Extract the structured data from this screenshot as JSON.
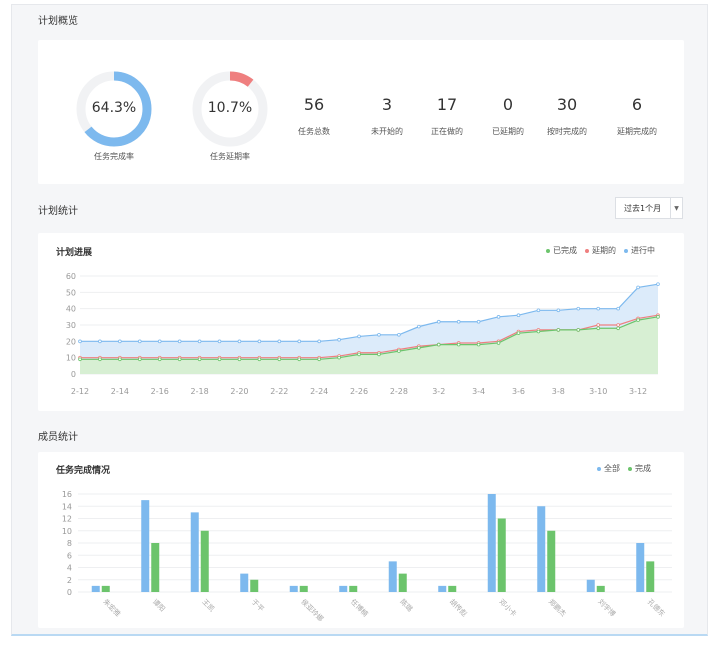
{
  "overview": {
    "title": "计划概览",
    "donuts": [
      {
        "value_text": "64.3%",
        "fraction": 0.643,
        "label": "任务完成率",
        "color": "#7db9ee"
      },
      {
        "value_text": "10.7%",
        "fraction": 0.107,
        "label": "任务延期率",
        "color": "#ef7f7f"
      }
    ],
    "stats": [
      {
        "value": "56",
        "label": "任务总数"
      },
      {
        "value": "3",
        "label": "未开始的"
      },
      {
        "value": "17",
        "label": "正在做的"
      },
      {
        "value": "0",
        "label": "已延期的"
      },
      {
        "value": "30",
        "label": "按时完成的"
      },
      {
        "value": "6",
        "label": "延期完成的"
      }
    ]
  },
  "plan_stats": {
    "title": "计划统计",
    "range_select": "过去1个月"
  },
  "member_stats": {
    "title": "成员统计"
  },
  "colors": {
    "blue": "#7db9ee",
    "green": "#6cc46c",
    "red": "#ef7f7f",
    "blue_fill": "#dcebfa",
    "green_fill": "#d7efd3"
  },
  "chart_data": [
    {
      "type": "area",
      "title": "计划进展",
      "legend": [
        "已完成",
        "延期的",
        "进行中"
      ],
      "legend_position": "top-right",
      "ylim": [
        0,
        60
      ],
      "y_ticks": [
        0,
        10,
        20,
        30,
        40,
        50,
        60
      ],
      "x": [
        "2-12",
        "2-13",
        "2-14",
        "2-15",
        "2-16",
        "2-17",
        "2-18",
        "2-19",
        "2-20",
        "2-21",
        "2-22",
        "2-23",
        "2-24",
        "2-25",
        "2-26",
        "2-27",
        "2-28",
        "3-1",
        "3-2",
        "3-3",
        "3-4",
        "3-5",
        "3-6",
        "3-7",
        "3-8",
        "3-9",
        "3-10",
        "3-11",
        "3-12",
        "3-13"
      ],
      "x_tick_labels": [
        "2-12",
        "2-14",
        "2-16",
        "2-18",
        "2-20",
        "2-22",
        "2-24",
        "2-26",
        "2-28",
        "3-2",
        "3-4",
        "3-6",
        "3-8",
        "3-10",
        "3-12"
      ],
      "series": [
        {
          "name": "进行中",
          "color": "#7db9ee",
          "values": [
            20,
            20,
            20,
            20,
            20,
            20,
            20,
            20,
            20,
            20,
            20,
            20,
            20,
            21,
            23,
            24,
            24,
            29,
            32,
            32,
            32,
            35,
            36,
            39,
            39,
            40,
            40,
            40,
            53,
            55
          ]
        },
        {
          "name": "已完成",
          "color": "#6cc46c",
          "values": [
            9,
            9,
            9,
            9,
            9,
            9,
            9,
            9,
            9,
            9,
            9,
            9,
            9,
            10,
            12,
            12,
            14,
            16,
            18,
            18,
            18,
            19,
            25,
            26,
            27,
            27,
            28,
            28,
            33,
            35
          ]
        },
        {
          "name": "延期的",
          "color": "#ef7f7f",
          "values": [
            10,
            10,
            10,
            10,
            10,
            10,
            10,
            10,
            10,
            10,
            10,
            10,
            10,
            11,
            13,
            13,
            15,
            17,
            18,
            19,
            19,
            20,
            26,
            27,
            27,
            27,
            30,
            30,
            34,
            36
          ]
        }
      ]
    },
    {
      "type": "bar",
      "title": "任务完成情况",
      "legend": [
        "全部",
        "完成"
      ],
      "legend_position": "top-right",
      "ylim": [
        0,
        16
      ],
      "y_ticks": [
        0,
        2,
        4,
        6,
        8,
        10,
        12,
        14,
        16
      ],
      "categories": [
        "朱宏雅",
        "谭阳",
        "王凯",
        "于平",
        "侯亚玲娜",
        "任博楠",
        "陈璐",
        "胡传彪",
        "邓小卡",
        "郑鹏杰",
        "刘宇博",
        "孔德东"
      ],
      "series": [
        {
          "name": "全部",
          "color": "#7db9ee",
          "values": [
            1,
            15,
            13,
            3,
            1,
            1,
            5,
            1,
            16,
            14,
            2,
            8
          ]
        },
        {
          "name": "完成",
          "color": "#6cc46c",
          "values": [
            1,
            8,
            10,
            2,
            1,
            1,
            3,
            1,
            12,
            10,
            1,
            5
          ]
        }
      ]
    }
  ]
}
